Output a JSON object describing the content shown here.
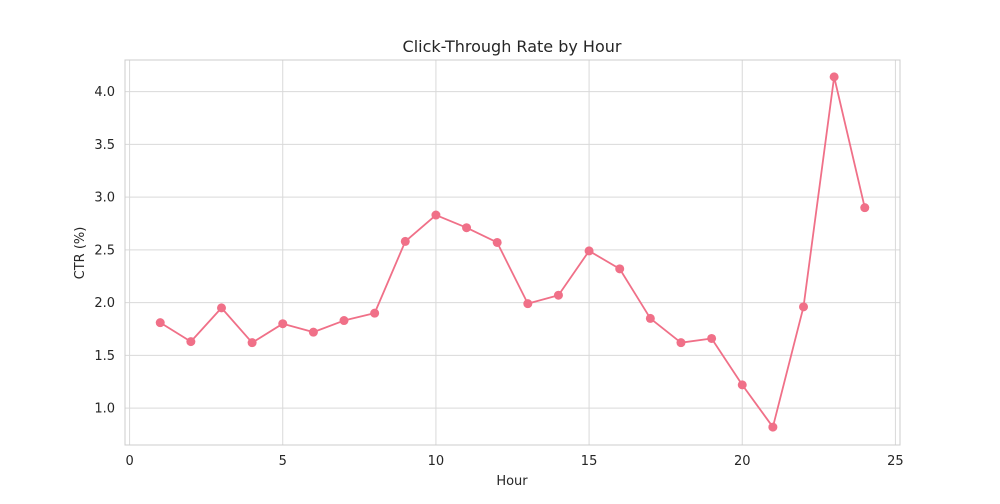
{
  "chart_data": {
    "type": "line",
    "title": "Click-Through Rate by Hour",
    "xlabel": "Hour",
    "ylabel": "CTR (%)",
    "xlim": [
      -0.15,
      25.15
    ],
    "ylim": [
      0.65,
      4.3
    ],
    "xticks": [
      0,
      5,
      10,
      15,
      20,
      25
    ],
    "yticks": [
      1.0,
      1.5,
      2.0,
      2.5,
      3.0,
      3.5,
      4.0
    ],
    "xtick_labels": [
      "0",
      "5",
      "10",
      "15",
      "20",
      "25"
    ],
    "ytick_labels": [
      "1.0",
      "1.5",
      "2.0",
      "2.5",
      "3.0",
      "3.5",
      "4.0"
    ],
    "grid": true,
    "series": [
      {
        "color": "#f07088",
        "marker": "circle",
        "x": [
          1,
          2,
          3,
          4,
          5,
          6,
          7,
          8,
          9,
          10,
          11,
          12,
          13,
          14,
          15,
          16,
          17,
          18,
          19,
          20,
          21,
          22,
          23,
          24
        ],
        "y": [
          1.81,
          1.63,
          1.95,
          1.62,
          1.8,
          1.72,
          1.83,
          1.9,
          2.58,
          2.83,
          2.71,
          2.57,
          1.99,
          2.07,
          2.49,
          2.32,
          1.85,
          1.62,
          1.66,
          1.22,
          0.82,
          1.96,
          4.14,
          2.9
        ]
      }
    ]
  }
}
